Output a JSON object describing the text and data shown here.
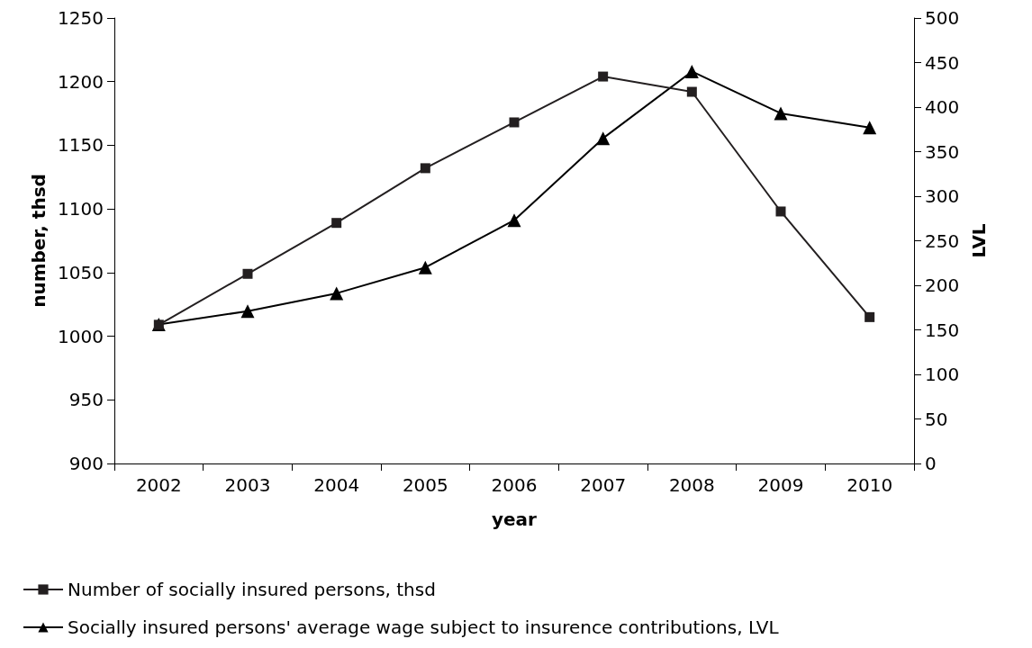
{
  "chart_data": {
    "type": "line",
    "xlabel": "year",
    "ylabel": "number, thsd",
    "y2label": "LVL",
    "categories": [
      "2002",
      "2003",
      "2004",
      "2005",
      "2006",
      "2007",
      "2008",
      "2009",
      "2010"
    ],
    "series": [
      {
        "name": "Number of socially insured persons, thsd",
        "color": "#231f20",
        "marker": "square",
        "values": [
          1009,
          1049,
          1089,
          1132,
          1168,
          1204,
          1192,
          1098,
          1015
        ]
      },
      {
        "name": "Socially insured persons' average wage subject to insurence contributions, LVL",
        "color": "#000000",
        "marker": "triangle",
        "axis": "y2",
        "values": [
          156,
          171,
          191,
          220,
          273,
          365,
          440,
          393,
          377
        ]
      }
    ],
    "ylim": [
      900,
      1250
    ],
    "yticks": [
      900,
      950,
      1000,
      1050,
      1100,
      1150,
      1200,
      1250
    ],
    "y2lim": [
      0,
      500
    ],
    "y2ticks": [
      0,
      50,
      100,
      150,
      200,
      250,
      300,
      350,
      400,
      450,
      500
    ],
    "grid": false,
    "legend": "bottom",
    "line_style": "solid"
  }
}
